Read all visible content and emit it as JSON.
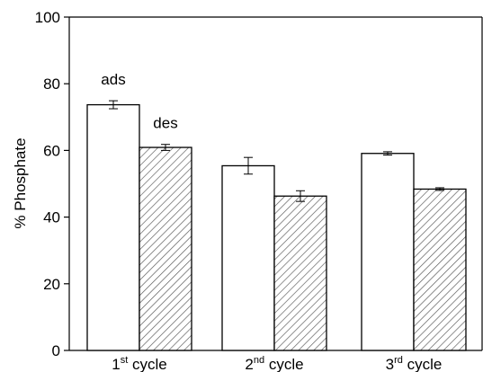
{
  "chart_data": {
    "type": "bar",
    "title": "",
    "xlabel": "",
    "ylabel": "% Phosphate",
    "ylim": [
      0,
      100
    ],
    "yticks": [
      0,
      20,
      40,
      60,
      80,
      100
    ],
    "grid": false,
    "categories": [
      {
        "num": "1",
        "sup": "st",
        "word": "cycle"
      },
      {
        "num": "2",
        "sup": "nd",
        "word": "cycle"
      },
      {
        "num": "3",
        "sup": "rd",
        "word": "cycle"
      }
    ],
    "series": [
      {
        "name": "ads",
        "fill": "none",
        "values": [
          73.7,
          55.4,
          59.1
        ],
        "errors": [
          1.2,
          2.5,
          0.5
        ]
      },
      {
        "name": "des",
        "fill": "hatched",
        "values": [
          60.9,
          46.3,
          48.4
        ],
        "errors": [
          0.9,
          1.6,
          0.4
        ]
      }
    ],
    "annotations": [
      {
        "text": "ads",
        "series": 0,
        "category": 0
      },
      {
        "text": "des",
        "series": 1,
        "category": 0
      }
    ],
    "colors": {
      "bar_stroke": "#000000",
      "hatch": "#555555",
      "background": "#ffffff"
    }
  }
}
